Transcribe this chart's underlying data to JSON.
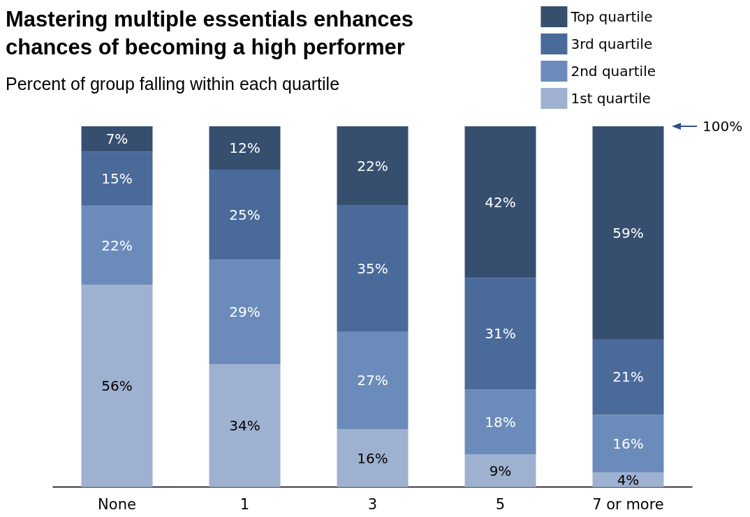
{
  "chart_data": {
    "type": "bar",
    "title": "Mastering multiple essentials enhances\nchances of becoming a high performer",
    "subtitle": "Percent of group falling within each quartile",
    "categories": [
      "None",
      "1",
      "3",
      "5",
      "7 or more"
    ],
    "series": [
      {
        "name": "1st quartile",
        "color": "#9fb1d0",
        "values": [
          56,
          34,
          16,
          9,
          4
        ],
        "value_labels": [
          "56%",
          "34%",
          "16%",
          "9%",
          "4%"
        ]
      },
      {
        "name": "2nd quartile",
        "color": "#6b8cba",
        "values": [
          22,
          29,
          27,
          18,
          16
        ],
        "value_labels": [
          "22%",
          "29%",
          "27%",
          "18%",
          "16%"
        ]
      },
      {
        "name": "3rd quartile",
        "color": "#4a6a9a",
        "values": [
          15,
          25,
          35,
          31,
          21
        ],
        "value_labels": [
          "15%",
          "25%",
          "35%",
          "31%",
          "21%"
        ]
      },
      {
        "name": "Top quartile",
        "color": "#374f6f",
        "values": [
          7,
          12,
          22,
          42,
          59
        ],
        "value_labels": [
          "7%",
          "12%",
          "22%",
          "42%",
          "59%"
        ]
      }
    ],
    "stacked": true,
    "legend": "top right",
    "annotations": [
      "100%"
    ]
  }
}
